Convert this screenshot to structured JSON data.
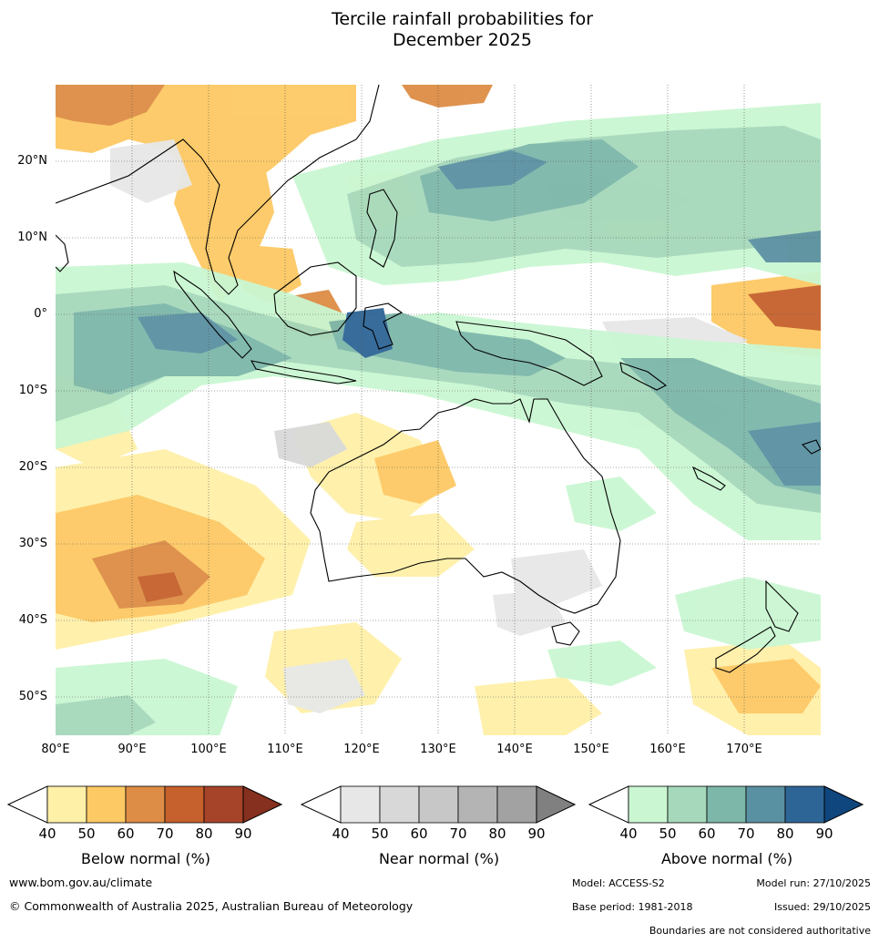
{
  "title": {
    "line1": "Tercile rainfall probabilities for",
    "line2": "December 2025"
  },
  "map": {
    "latitude_labels": [
      "20°N",
      "10°N",
      "0°",
      "10°S",
      "20°S",
      "30°S",
      "40°S",
      "50°S"
    ],
    "longitude_labels": [
      "80°E",
      "90°E",
      "100°E",
      "110°E",
      "120°E",
      "130°E",
      "140°E",
      "150°E",
      "160°E",
      "170°E"
    ]
  },
  "colorbars": [
    {
      "label": "Below normal (%)",
      "ticks": [
        "40",
        "50",
        "60",
        "70",
        "80",
        "90"
      ],
      "colors": [
        "#fff0a8",
        "#fdc964",
        "#dd8d45",
        "#c6602c",
        "#a6442a",
        "#86301f"
      ]
    },
    {
      "label": "Near normal (%)",
      "ticks": [
        "40",
        "50",
        "60",
        "70",
        "80",
        "90"
      ],
      "colors": [
        "#e7e7e7",
        "#d8d8d8",
        "#c7c7c7",
        "#b4b4b4",
        "#a2a2a2",
        "#808080"
      ]
    },
    {
      "label": "Above normal (%)",
      "ticks": [
        "40",
        "50",
        "60",
        "70",
        "80",
        "90"
      ],
      "colors": [
        "#caf7d2",
        "#a6d9bb",
        "#7db7aa",
        "#5a91a2",
        "#2d6596",
        "#0f467e"
      ]
    }
  ],
  "footer": {
    "website": "www.bom.gov.au/climate",
    "copyright": "© Commonwealth of Australia 2025, Australian Bureau of Meteorology",
    "model": "Model: ACCESS-S2",
    "model_run": "Model run: 27/10/2025",
    "base_period": "Base period: 1981-2018",
    "issued": "Issued: 29/10/2025",
    "disclaimer": "Boundaries are not considered authoritative"
  }
}
